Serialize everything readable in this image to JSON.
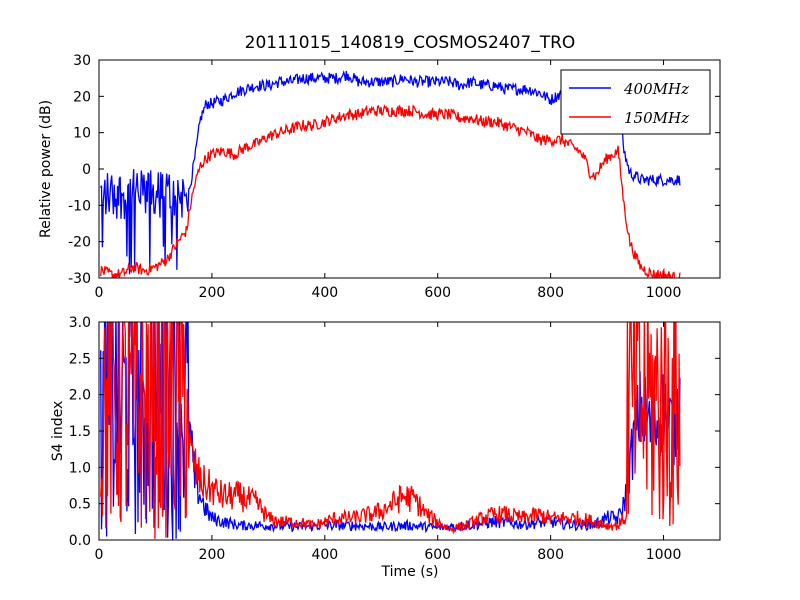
{
  "chart_data": {
    "title": "20111015_140819_COSMOS2407_TRO",
    "xlabel": "Time (s)",
    "colors": {
      "400MHz": "#0000ff",
      "150MHz": "#ff0000"
    },
    "legend": {
      "placement": "top-right",
      "entries": [
        "400MHz",
        "150MHz"
      ]
    },
    "subplots": [
      {
        "type": "line",
        "ylabel": "Relative power (dB)",
        "xlim": [
          0,
          1100
        ],
        "ylim": [
          -30,
          30
        ],
        "xticks": [
          "0",
          "200",
          "400",
          "600",
          "800",
          "1000"
        ],
        "yticks": [
          "-30",
          "-20",
          "-10",
          "0",
          "10",
          "20",
          "30"
        ],
        "series": [
          {
            "name": "400MHz",
            "color": "#0000ff",
            "x": [
              5,
              20,
              40,
              60,
              80,
              100,
              120,
              140,
              155,
              162,
              170,
              180,
              190,
              200,
              220,
              240,
              260,
              280,
              300,
              320,
              340,
              360,
              380,
              400,
              420,
              440,
              460,
              480,
              500,
              520,
              540,
              560,
              580,
              600,
              620,
              640,
              660,
              680,
              700,
              720,
              740,
              760,
              780,
              800,
              820,
              840,
              850,
              860,
              870,
              880,
              890,
              900,
              910,
              920,
              930,
              940,
              950,
              960,
              980,
              1000,
              1020,
              1030
            ],
            "y": [
              -9,
              -10,
              -9,
              -11,
              -9,
              -10,
              -9,
              -9,
              -10,
              -4,
              3,
              14,
              18,
              18,
              19,
              21,
              22,
              23,
              23,
              24,
              24,
              25,
              25,
              25,
              25,
              26,
              24,
              24,
              24,
              24,
              25,
              24,
              24,
              24,
              24,
              23,
              24,
              23,
              23,
              22,
              22,
              22,
              21,
              19,
              21,
              22,
              21,
              21,
              19,
              21,
              22,
              23,
              24,
              20,
              5,
              -1,
              -2,
              -3,
              -3,
              -3,
              -3,
              -3
            ],
            "noise_until": 158,
            "noise_low": -30,
            "noise_high": 2
          },
          {
            "name": "150MHz",
            "color": "#ff0000",
            "x": [
              5,
              20,
              40,
              60,
              80,
              100,
              120,
              140,
              155,
              162,
              170,
              180,
              190,
              200,
              220,
              240,
              260,
              280,
              300,
              320,
              340,
              360,
              380,
              400,
              420,
              440,
              460,
              480,
              500,
              520,
              540,
              560,
              580,
              600,
              620,
              640,
              660,
              680,
              700,
              720,
              740,
              760,
              780,
              800,
              820,
              840,
              850,
              860,
              870,
              880,
              890,
              900,
              910,
              920,
              930,
              940,
              950,
              960,
              980,
              1000,
              1020,
              1030
            ],
            "y": [
              -28,
              -29,
              -29,
              -27,
              -28,
              -27,
              -25,
              -20,
              -17,
              -10,
              -4,
              1,
              3,
              4,
              5,
              4,
              6,
              7,
              9,
              10,
              11,
              12,
              12,
              13,
              14,
              15,
              15,
              16,
              16,
              16,
              16,
              16,
              15,
              15,
              15,
              14,
              14,
              13,
              13,
              12,
              11,
              10,
              8,
              8,
              8,
              6,
              5,
              3,
              -1,
              -2,
              1,
              3,
              4,
              5,
              -10,
              -20,
              -24,
              -27,
              -29,
              -29,
              -30,
              -30
            ]
          }
        ]
      },
      {
        "type": "line",
        "ylabel": "S4 index",
        "xlim": [
          0,
          1100
        ],
        "ylim": [
          0,
          3
        ],
        "xticks": [
          "0",
          "200",
          "400",
          "600",
          "800",
          "1000"
        ],
        "yticks": [
          "0.0",
          "0.5",
          "1.0",
          "1.5",
          "2.0",
          "2.5",
          "3.0"
        ],
        "series": [
          {
            "name": "400MHz",
            "color": "#0000ff",
            "x": [
              5,
              160,
              170,
              180,
              190,
              200,
              220,
              250,
              300,
              350,
              400,
              450,
              500,
              550,
              600,
              650,
              700,
              750,
              800,
              850,
              880,
              900,
              910,
              920,
              930,
              940,
              950,
              960,
              970,
              980,
              1000,
              1020,
              1030
            ],
            "y": [
              1.5,
              1.5,
              0.8,
              0.6,
              0.4,
              0.3,
              0.25,
              0.2,
              0.2,
              0.18,
              0.2,
              0.2,
              0.18,
              0.2,
              0.17,
              0.2,
              0.25,
              0.22,
              0.25,
              0.2,
              0.22,
              0.3,
              0.3,
              0.3,
              0.5,
              1.0,
              1.5,
              1.8,
              1.7,
              1.5,
              1.8,
              1.5,
              2.0
            ],
            "noise_until": 158,
            "noise_low": 0,
            "noise_high": 3
          },
          {
            "name": "150MHz",
            "color": "#ff0000",
            "x": [
              5,
              160,
              170,
              180,
              200,
              220,
              250,
              280,
              300,
              320,
              350,
              380,
              400,
              420,
              450,
              480,
              500,
              520,
              540,
              560,
              580,
              600,
              620,
              650,
              680,
              700,
              720,
              750,
              780,
              800,
              820,
              850,
              880,
              900,
              920,
              930
            ],
            "y": [
              1.5,
              1.2,
              1.0,
              0.8,
              0.7,
              0.6,
              0.6,
              0.5,
              0.3,
              0.25,
              0.25,
              0.2,
              0.25,
              0.3,
              0.3,
              0.35,
              0.4,
              0.5,
              0.6,
              0.55,
              0.35,
              0.25,
              0.15,
              0.2,
              0.3,
              0.35,
              0.35,
              0.3,
              0.35,
              0.3,
              0.3,
              0.3,
              0.25,
              0.2,
              0.2,
              0.3
            ],
            "noise_until": 158,
            "noise_low": 0,
            "noise_high": 3,
            "noise_from": 935,
            "noise_to": 1030
          }
        ]
      }
    ]
  }
}
